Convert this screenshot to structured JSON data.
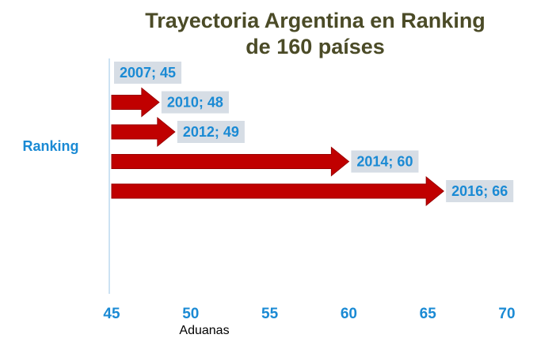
{
  "chart_data": {
    "type": "bar",
    "orientation": "horizontal",
    "mark": "arrow",
    "title": "Trayectoria Argentina en Ranking",
    "subtitle": "de 160 países",
    "x_label": "Aduanas",
    "y_label": "Ranking",
    "values": [
      45,
      48,
      49,
      60,
      66
    ],
    "value_labels": [
      "2007; 45",
      "2010; 48",
      "2012; 49",
      "2014; 60",
      "2016; 66"
    ],
    "color": "#c00000",
    "xlim": [
      45,
      70
    ],
    "xticks": [
      45,
      50,
      55,
      60,
      65,
      70
    ]
  }
}
